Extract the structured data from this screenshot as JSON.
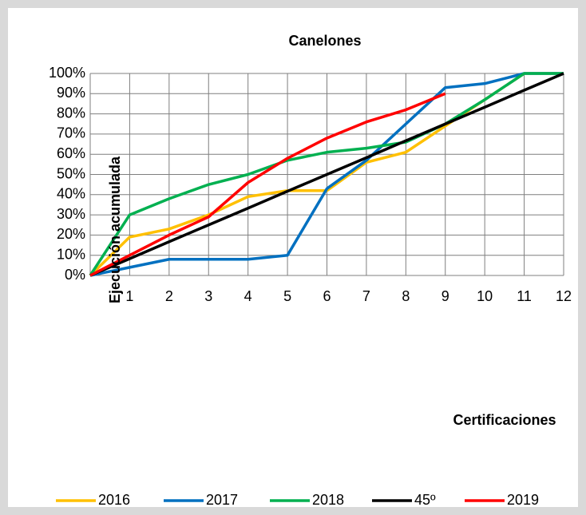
{
  "chart_data": {
    "type": "line",
    "title": "Canelones",
    "x_label": "Certificaciones",
    "y_label": "Ejecución acumulada",
    "x": [
      0,
      1,
      2,
      3,
      4,
      5,
      6,
      7,
      8,
      9,
      10,
      11,
      12
    ],
    "xlim": [
      0,
      12
    ],
    "xticks": [
      1,
      2,
      3,
      4,
      5,
      6,
      7,
      8,
      9,
      10,
      11,
      12
    ],
    "ylim": [
      0,
      100
    ],
    "yticks": [
      {
        "value": 0,
        "label": "0%"
      },
      {
        "value": 10,
        "label": "10%"
      },
      {
        "value": 20,
        "label": "20%"
      },
      {
        "value": 30,
        "label": "30%"
      },
      {
        "value": 40,
        "label": "40%"
      },
      {
        "value": 50,
        "label": "50%"
      },
      {
        "value": 60,
        "label": "60%"
      },
      {
        "value": 70,
        "label": "70%"
      },
      {
        "value": 80,
        "label": "80%"
      },
      {
        "value": 90,
        "label": "90%"
      },
      {
        "value": 100,
        "label": "100%"
      }
    ],
    "grid": true,
    "legend": "bottom",
    "series": [
      {
        "name": "2016",
        "color": "#ffc000",
        "values": [
          0,
          19,
          23,
          30,
          39,
          42,
          42,
          56,
          61,
          74,
          87,
          100,
          100
        ]
      },
      {
        "name": "2017",
        "color": "#0070c0",
        "values": [
          0,
          4,
          8,
          8,
          8,
          10,
          43,
          57,
          75,
          93,
          95,
          100,
          100
        ]
      },
      {
        "name": "2018",
        "color": "#00b050",
        "values": [
          0,
          30,
          38,
          45,
          50,
          57,
          61,
          63,
          66,
          75,
          87,
          100,
          100
        ]
      },
      {
        "name": "45º",
        "color": "#000000",
        "values": [
          0,
          8.3,
          16.7,
          25,
          33.3,
          41.7,
          50,
          58.3,
          66.7,
          75,
          83.3,
          91.7,
          100
        ]
      },
      {
        "name": "2019",
        "color": "#ff0000",
        "values": [
          0,
          10,
          20,
          29,
          46,
          58,
          68,
          76,
          82,
          90,
          null,
          null,
          null
        ]
      }
    ]
  }
}
